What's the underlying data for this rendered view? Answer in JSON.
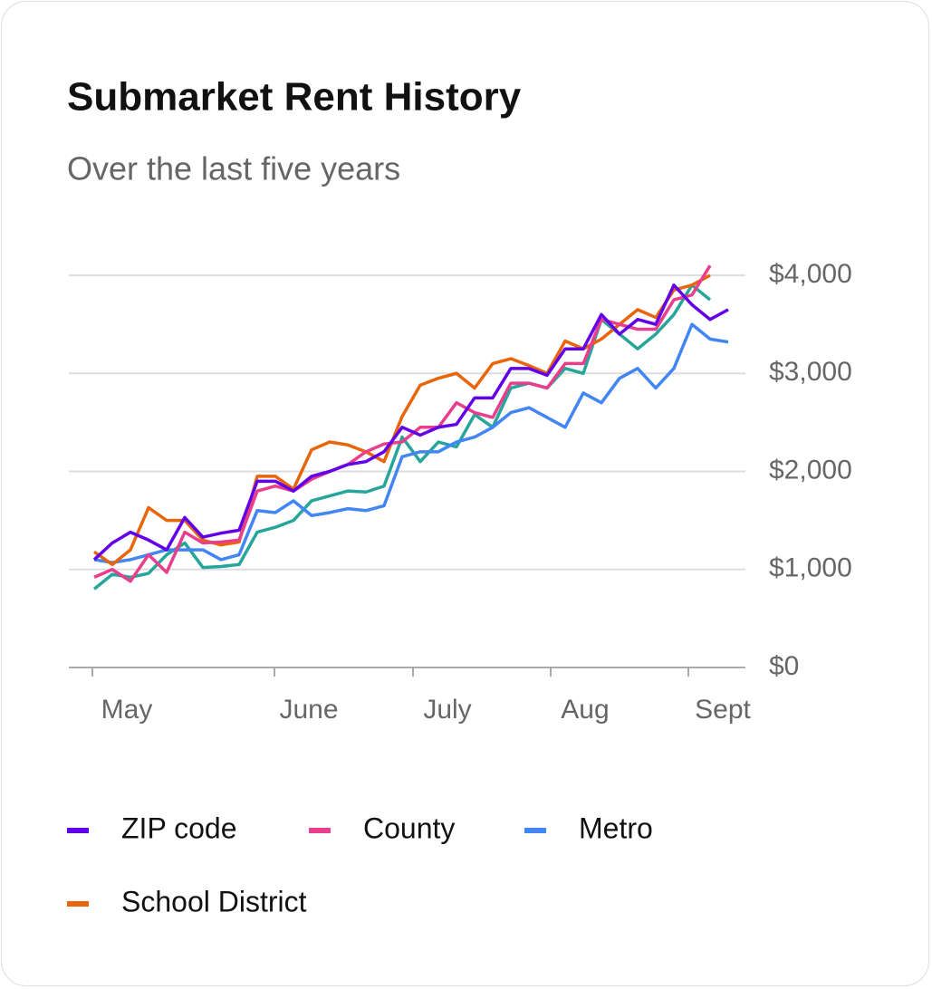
{
  "chart_data": {
    "type": "line",
    "title": "Submarket Rent History",
    "subtitle": "Over the last five years",
    "x": [
      1.4,
      2.4,
      3.4,
      4.4,
      5.4,
      6.4,
      7.4,
      8.4,
      9.4,
      10.4,
      11.4,
      12.4,
      13.4,
      14.4,
      15.4,
      16.4,
      17.4,
      18.4,
      19.4,
      20.4,
      21.4,
      22.4,
      23.4,
      24.4,
      25.4,
      26.4,
      27.4,
      28.4,
      29.4,
      30.4,
      31.4,
      32.4,
      33.4,
      34.4,
      35.4,
      36.4
    ],
    "xlim": [
      0,
      37.35
    ],
    "xticks": [
      {
        "value": 1.3,
        "label": "May"
      },
      {
        "value": 11.35,
        "label": "June"
      },
      {
        "value": 19,
        "label": "July"
      },
      {
        "value": 26.6,
        "label": "Aug"
      },
      {
        "value": 34.2,
        "label": "Sept"
      }
    ],
    "ylim": [
      0,
      4000
    ],
    "yticks": [
      {
        "value": 0,
        "label": "$0"
      },
      {
        "value": 1000,
        "label": "$1,000"
      },
      {
        "value": 2000,
        "label": "$2,000"
      },
      {
        "value": 3000,
        "label": "$3,000"
      },
      {
        "value": 4000,
        "label": "$4,000"
      }
    ],
    "grid": true,
    "series": [
      {
        "color": "#26a69a",
        "values": [
          800,
          950,
          920,
          960,
          1150,
          1270,
          1020,
          1030,
          1050,
          1380,
          1430,
          1500,
          1700,
          1750,
          1800,
          1790,
          1850,
          2350,
          2100,
          2300,
          2250,
          2580,
          2450,
          2850,
          2900,
          2850,
          3050,
          3000,
          3550,
          3400,
          3250,
          3400,
          3600,
          3900,
          3750,
          null
        ]
      },
      {
        "name": "Metro",
        "color": "#4285f4",
        "values": [
          1100,
          1070,
          1100,
          1150,
          1200,
          1200,
          1200,
          1100,
          1150,
          1600,
          1580,
          1700,
          1550,
          1580,
          1620,
          1600,
          1650,
          2150,
          2200,
          2200,
          2300,
          2350,
          2450,
          2600,
          2650,
          2550,
          2450,
          2800,
          2700,
          2950,
          3050,
          2850,
          3050,
          3500,
          3350,
          3320
        ]
      },
      {
        "name": "School District",
        "color": "#e8650a",
        "values": [
          1180,
          1050,
          1200,
          1630,
          1500,
          1500,
          1300,
          1250,
          1280,
          1950,
          1950,
          1820,
          2220,
          2300,
          2270,
          2200,
          2100,
          2560,
          2880,
          2950,
          3000,
          2850,
          3100,
          3150,
          3080,
          3000,
          3330,
          3250,
          3350,
          3500,
          3650,
          3570,
          3850,
          3900,
          4000,
          null
        ]
      },
      {
        "name": "County",
        "color": "#e83e8c",
        "values": [
          920,
          1000,
          880,
          1150,
          970,
          1380,
          1270,
          1280,
          1300,
          1800,
          1850,
          1800,
          1920,
          2000,
          2070,
          2200,
          2280,
          2300,
          2450,
          2450,
          2700,
          2600,
          2550,
          2900,
          2900,
          2850,
          3100,
          3100,
          3550,
          3500,
          3450,
          3450,
          3750,
          3800,
          4100,
          null
        ]
      },
      {
        "name": "ZIP code",
        "color": "#6200ea",
        "values": [
          1100,
          1270,
          1380,
          1300,
          1200,
          1530,
          1330,
          1370,
          1400,
          1900,
          1900,
          1800,
          1950,
          2000,
          2070,
          2100,
          2200,
          2450,
          2370,
          2450,
          2480,
          2750,
          2750,
          3050,
          3050,
          2980,
          3250,
          3250,
          3600,
          3400,
          3550,
          3500,
          3900,
          3700,
          3550,
          3650
        ]
      }
    ],
    "legend_order": [
      "ZIP code",
      "County",
      "Metro",
      "School District"
    ]
  }
}
